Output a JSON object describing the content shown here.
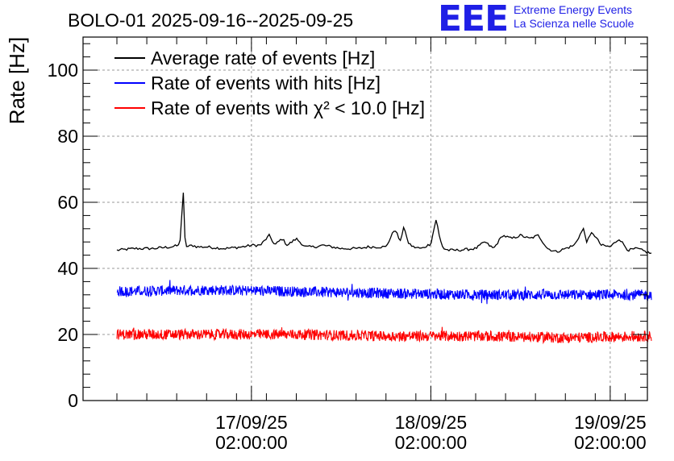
{
  "logo": {
    "mark": "EEE",
    "line1": "Extreme Energy Events",
    "line2": "La Scienza nelle Scuole",
    "color": "#1f1fe6"
  },
  "chart_data": {
    "type": "line",
    "title": "BOLO-01 2025-09-16--2025-09-25",
    "xlabel": "",
    "ylabel": "Rate [Hz]",
    "ylim": [
      0,
      110
    ],
    "y_ticks": [
      0,
      20,
      40,
      60,
      80,
      100
    ],
    "x_ticks": [
      {
        "date": "17/09/25",
        "time": "02:00:00"
      },
      {
        "date": "18/09/25",
        "time": "02:00:00"
      },
      {
        "date": "19/09/25",
        "time": "02:00:00"
      }
    ],
    "x_range_days": [
      0.0,
      3.0
    ],
    "grid": true,
    "legend_placement": "top-left",
    "series": [
      {
        "name": "Average rate of events [Hz]",
        "color": "#000000",
        "x": [
          0.0,
          0.1,
          0.2,
          0.3,
          0.35,
          0.37,
          0.38,
          0.39,
          0.42,
          0.45,
          0.5,
          0.6,
          0.7,
          0.75,
          0.8,
          0.85,
          0.88,
          0.92,
          0.95,
          1.0,
          1.05,
          1.1,
          1.15,
          1.2,
          1.25,
          1.3,
          1.35,
          1.4,
          1.5,
          1.55,
          1.58,
          1.6,
          1.62,
          1.65,
          1.7,
          1.75,
          1.78,
          1.8,
          1.82,
          1.85,
          1.9,
          2.0,
          2.05,
          2.1,
          2.15,
          2.2,
          2.25,
          2.3,
          2.35,
          2.4,
          2.45,
          2.5,
          2.55,
          2.6,
          2.62,
          2.65,
          2.7,
          2.75,
          2.8,
          2.85,
          2.9,
          2.95,
          2.98
        ],
        "values": [
          45.5,
          46,
          46,
          46.5,
          47,
          63,
          48,
          46.5,
          47,
          46.5,
          46.5,
          46,
          46.5,
          47,
          47,
          50,
          47,
          49,
          47,
          49,
          46.5,
          46.5,
          47,
          46.5,
          46,
          46,
          46,
          46.5,
          46.5,
          52,
          48,
          53,
          48,
          46.5,
          46,
          47.5,
          55,
          49,
          46,
          45.5,
          45.5,
          46,
          48,
          46,
          50,
          49,
          50,
          49,
          50,
          46,
          45,
          46,
          47,
          52,
          48,
          51,
          47,
          46.5,
          49,
          45.5,
          46,
          45,
          44.5
        ]
      },
      {
        "name": "Rate of events with hits [Hz]",
        "color": "#0000ff",
        "x": [
          0.0,
          0.5,
          1.0,
          1.5,
          2.0,
          2.5,
          2.98
        ],
        "values": [
          33,
          33.5,
          33,
          32.5,
          32,
          32,
          32
        ]
      },
      {
        "name": "Rate of events with χ² < 10.0 [Hz]",
        "color": "#ff0000",
        "x": [
          0.0,
          0.5,
          1.0,
          1.5,
          2.0,
          2.5,
          2.98
        ],
        "values": [
          20,
          20,
          20,
          19.5,
          19.5,
          19,
          19.5
        ]
      }
    ]
  }
}
